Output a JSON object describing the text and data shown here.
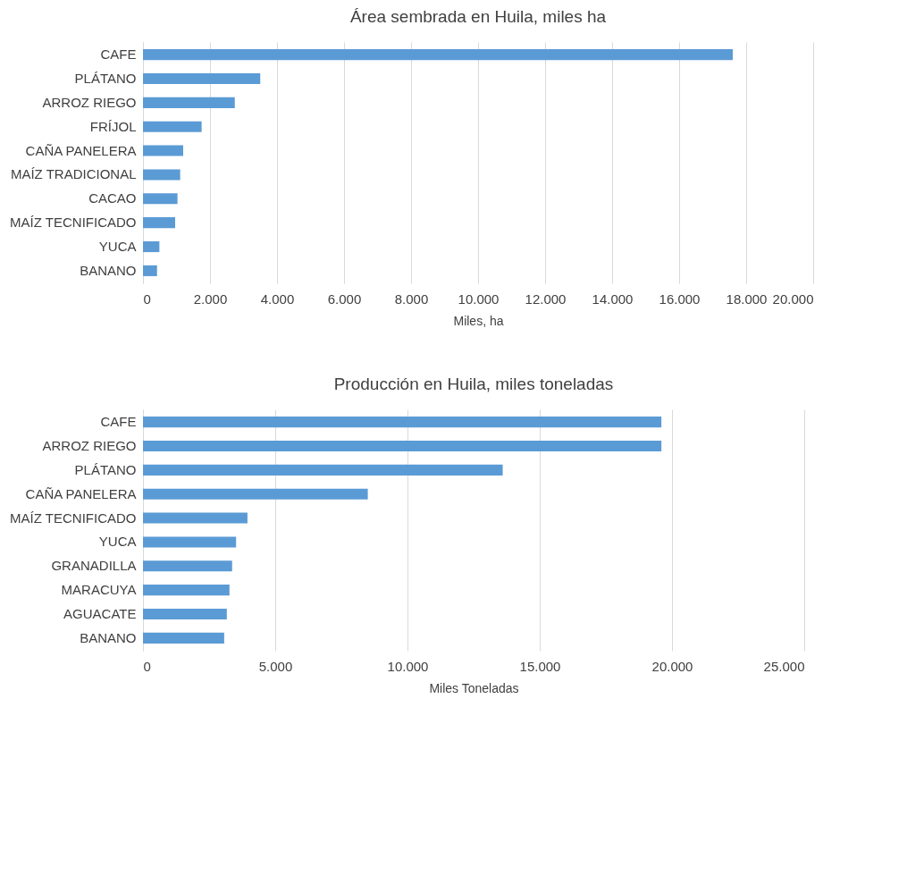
{
  "chart_data": [
    {
      "type": "bar",
      "orientation": "horizontal",
      "title": "Área sembrada en Huila, miles ha",
      "xlabel": "Miles, ha",
      "categories": [
        "CAFE",
        "PLÁTANO",
        "ARROZ RIEGO",
        "FRÍJOL",
        "CAÑA PANELERA",
        "MAÍZ TRADICIONAL",
        "CACAO",
        "MAÍZ TECNIFICADO",
        "YUCA",
        "BANANO"
      ],
      "values": [
        17600,
        3500,
        2740,
        1750,
        1200,
        1110,
        1030,
        960,
        490,
        420
      ],
      "color": "#5b9bd5",
      "xlim": [
        0,
        20000
      ],
      "xticks": [
        0,
        {
          "value": 2000,
          "label": "2.000"
        },
        {
          "value": 4000,
          "label": "4.000"
        },
        {
          "value": 6000,
          "label": "6.000"
        },
        {
          "value": 8000,
          "label": "8.000"
        },
        {
          "value": 10000,
          "label": "10.000"
        },
        {
          "value": 12000,
          "label": "12.000"
        },
        {
          "value": 14000,
          "label": "14.000"
        },
        {
          "value": 16000,
          "label": "16.000"
        },
        {
          "value": 18000,
          "label": "18.000"
        },
        {
          "value": 20000,
          "label": "20.000"
        }
      ],
      "grid": "x"
    },
    {
      "type": "bar",
      "orientation": "horizontal",
      "title": "Producción en Huila, miles toneladas",
      "xlabel": "Miles Toneladas",
      "categories": [
        "CAFE",
        "ARROZ RIEGO",
        "PLÁTANO",
        "CAÑA PANELERA",
        "MAÍZ TECNIFICADO",
        "YUCA",
        "GRANADILLA",
        "MARACUYA",
        "AGUACATE",
        "BANANO"
      ],
      "values": [
        19600,
        19600,
        13600,
        8500,
        3950,
        3520,
        3370,
        3270,
        3170,
        3070
      ],
      "color": "#5b9bd5",
      "xlim": [
        0,
        25000
      ],
      "xticks": [
        0,
        {
          "value": 5000,
          "label": "5.000"
        },
        {
          "value": 10000,
          "label": "10.000"
        },
        {
          "value": 15000,
          "label": "15.000"
        },
        {
          "value": 20000,
          "label": "20.000"
        },
        {
          "value": 25000,
          "label": "25.000"
        }
      ],
      "grid": "x"
    }
  ]
}
